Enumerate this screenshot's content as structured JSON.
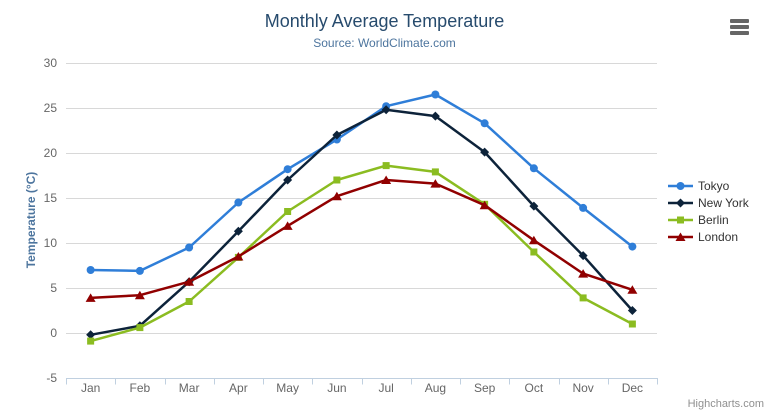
{
  "header": {
    "title": "Monthly Average Temperature",
    "subtitle": "Source: WorldClimate.com"
  },
  "context_menu": {
    "icon": "hamburger-menu-icon"
  },
  "credits": {
    "label": "Highcharts.com"
  },
  "colors": {
    "title": "#274b6d",
    "subtitle": "#4d759e",
    "axis_title": "#4d759e",
    "axis_label": "#666666",
    "grid_line": "#d8d8d8",
    "axis_line": "#c0d0e0",
    "legend_text": "#333333",
    "credits": "#909090",
    "menu_icon": "#666666"
  },
  "chart_data": {
    "type": "line",
    "title": "Monthly Average Temperature",
    "subtitle": "Source: WorldClimate.com",
    "categories": [
      "Jan",
      "Feb",
      "Mar",
      "Apr",
      "May",
      "Jun",
      "Jul",
      "Aug",
      "Sep",
      "Oct",
      "Nov",
      "Dec"
    ],
    "xlabel": "",
    "ylabel": "Temperature (°C)",
    "ylim": [
      -5,
      30
    ],
    "ytick_interval": 5,
    "ytick_labels": [
      "-5",
      "0",
      "5",
      "10",
      "15",
      "20",
      "25",
      "30"
    ],
    "grid": "horizontal",
    "legend_position": "right",
    "series": [
      {
        "name": "Tokyo",
        "color": "#2f7ed8",
        "marker": "circle",
        "values": [
          7.0,
          6.9,
          9.5,
          14.5,
          18.2,
          21.5,
          25.2,
          26.5,
          23.3,
          18.3,
          13.9,
          9.6
        ]
      },
      {
        "name": "New York",
        "color": "#0d233a",
        "marker": "diamond",
        "values": [
          -0.2,
          0.8,
          5.7,
          11.3,
          17.0,
          22.0,
          24.8,
          24.1,
          20.1,
          14.1,
          8.6,
          2.5
        ]
      },
      {
        "name": "Berlin",
        "color": "#8bbc21",
        "marker": "square",
        "values": [
          -0.9,
          0.6,
          3.5,
          8.4,
          13.5,
          17.0,
          18.6,
          17.9,
          14.3,
          9.0,
          3.9,
          1.0
        ]
      },
      {
        "name": "London",
        "color": "#910000",
        "marker": "triangle",
        "values": [
          3.9,
          4.2,
          5.7,
          8.5,
          11.9,
          15.2,
          17.0,
          16.6,
          14.2,
          10.3,
          6.6,
          4.8
        ]
      }
    ]
  }
}
